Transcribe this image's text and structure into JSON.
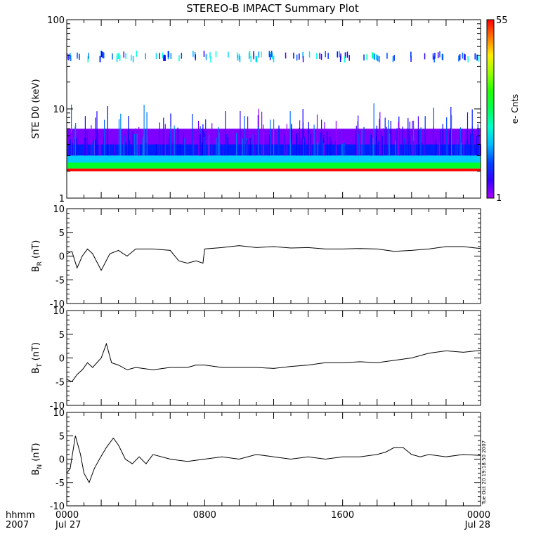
{
  "title": "STEREO-B IMPACT Summary Plot",
  "timestamp": "Tue Oct 20 19:18:50 2007",
  "xaxis": {
    "prefix_line1": "hhmm",
    "prefix_line2": "2007",
    "ticks": [
      {
        "hours": 0,
        "hhmm": "0000",
        "date": "Jul 27"
      },
      {
        "hours": 8,
        "hhmm": "0800",
        "date": ""
      },
      {
        "hours": 16,
        "hhmm": "1600",
        "date": ""
      },
      {
        "hours": 24,
        "hhmm": "0000",
        "date": "Jul 28"
      }
    ],
    "range_hours": [
      0,
      24
    ]
  },
  "spectrogram": {
    "ylabel": "STE D0 (keV)",
    "yscale": "log",
    "ylim": [
      1,
      100
    ],
    "yticks": [
      "1",
      "10",
      "100"
    ],
    "colorbar": {
      "label": "e- Cnts",
      "min_label": "1",
      "max_label": "55",
      "min": 1,
      "max": 55
    }
  },
  "panels": [
    {
      "id": "br",
      "ylabel_main": "B",
      "ylabel_sub": "R",
      "ylabel_unit": " (nT)",
      "ylim": [
        -10,
        10
      ],
      "yticks": [
        "10",
        "5",
        "0",
        "-5",
        "-10"
      ]
    },
    {
      "id": "bt",
      "ylabel_main": "B",
      "ylabel_sub": "T",
      "ylabel_unit": " (nT)",
      "ylim": [
        -10,
        10
      ],
      "yticks": [
        "10",
        "5",
        "0",
        "-5",
        "-10"
      ]
    },
    {
      "id": "bn",
      "ylabel_main": "B",
      "ylabel_sub": "N",
      "ylabel_unit": " (nT)",
      "ylim": [
        -10,
        10
      ],
      "yticks": [
        "10",
        "5",
        "0",
        "-5",
        "-10"
      ]
    }
  ],
  "chart_data": [
    {
      "type": "heatmap",
      "title": "STEREO-B IMPACT Summary Plot",
      "ylabel": "STE D0 (keV)",
      "yscale": "log",
      "ylim": [
        1,
        100
      ],
      "x_hours": [
        0,
        24
      ],
      "colorbar_range": [
        1,
        55
      ],
      "colorbar_label": "e- Cnts",
      "bands": [
        {
          "energy_keV": [
            2.0,
            2.15
          ],
          "counts": 55
        },
        {
          "energy_keV": [
            2.15,
            2.5
          ],
          "counts": 30
        },
        {
          "energy_keV": [
            2.5,
            3.0
          ],
          "counts": 18
        },
        {
          "energy_keV": [
            3.0,
            4.0
          ],
          "counts": 10
        },
        {
          "energy_keV": [
            4.0,
            6.0
          ],
          "counts": 3
        },
        {
          "energy_keV": [
            33,
            45
          ],
          "counts": 5
        }
      ]
    },
    {
      "type": "line",
      "ylabel": "B_R (nT)",
      "ylim": [
        -10,
        10
      ],
      "x_hours": [
        0,
        0.3,
        0.6,
        0.9,
        1.2,
        1.5,
        2.0,
        2.5,
        3.0,
        3.5,
        4.0,
        5.0,
        6.0,
        6.5,
        7.0,
        7.5,
        7.9,
        8.0,
        9.0,
        10.0,
        11.0,
        12.0,
        13.0,
        14.0,
        15.0,
        16.0,
        17.0,
        18.0,
        19.0,
        20.0,
        21.0,
        22.0,
        23.0,
        24.0
      ],
      "values": [
        0.5,
        1.0,
        -2.5,
        0.0,
        1.5,
        0.5,
        -3.0,
        0.5,
        1.2,
        0.0,
        1.5,
        1.5,
        1.2,
        -1.0,
        -1.5,
        -1.0,
        -1.5,
        1.5,
        1.8,
        2.2,
        1.8,
        2.0,
        1.7,
        1.8,
        1.5,
        1.5,
        1.6,
        1.5,
        1.0,
        1.2,
        1.5,
        2.0,
        2.0,
        1.6
      ]
    },
    {
      "type": "line",
      "ylabel": "B_T (nT)",
      "ylim": [
        -10,
        10
      ],
      "x_hours": [
        0,
        0.3,
        0.6,
        0.9,
        1.2,
        1.5,
        2.0,
        2.3,
        2.6,
        3.0,
        3.5,
        4.0,
        5.0,
        6.0,
        7.0,
        7.5,
        8.0,
        9.0,
        10.0,
        11.0,
        12.0,
        13.0,
        14.0,
        15.0,
        16.0,
        17.0,
        18.0,
        19.0,
        20.0,
        21.0,
        22.0,
        23.0,
        24.0
      ],
      "values": [
        -4.5,
        -5.0,
        -3.5,
        -2.5,
        -1.0,
        -2.0,
        0.0,
        3.0,
        -1.0,
        -1.5,
        -2.5,
        -2.0,
        -2.5,
        -2.0,
        -2.0,
        -1.5,
        -1.5,
        -2.0,
        -2.0,
        -2.0,
        -2.2,
        -1.8,
        -1.5,
        -1.0,
        -1.0,
        -0.8,
        -1.0,
        -0.5,
        0.0,
        1.0,
        1.5,
        1.2,
        1.6
      ]
    },
    {
      "type": "line",
      "ylabel": "B_N (nT)",
      "ylim": [
        -10,
        10
      ],
      "x_hours": [
        0,
        0.2,
        0.5,
        0.8,
        1.0,
        1.3,
        1.6,
        1.9,
        2.3,
        2.7,
        3.0,
        3.4,
        3.8,
        4.2,
        4.6,
        5.0,
        6.0,
        7.0,
        8.0,
        9.0,
        10.0,
        11.0,
        12.0,
        13.0,
        14.0,
        15.0,
        16.0,
        17.0,
        18.0,
        18.5,
        19.0,
        19.5,
        20.0,
        20.5,
        21.0,
        22.0,
        23.0,
        24.0
      ],
      "values": [
        -3.0,
        -2.0,
        5.0,
        1.0,
        -3.0,
        -5.0,
        -2.0,
        0.0,
        2.5,
        4.5,
        3.0,
        0.0,
        -1.0,
        0.5,
        -1.0,
        1.0,
        0.0,
        -0.5,
        0.0,
        0.5,
        0.0,
        1.0,
        0.5,
        0.0,
        0.5,
        0.0,
        0.5,
        0.5,
        1.0,
        1.5,
        2.5,
        2.5,
        1.0,
        0.5,
        1.0,
        0.5,
        1.0,
        0.8
      ]
    }
  ]
}
